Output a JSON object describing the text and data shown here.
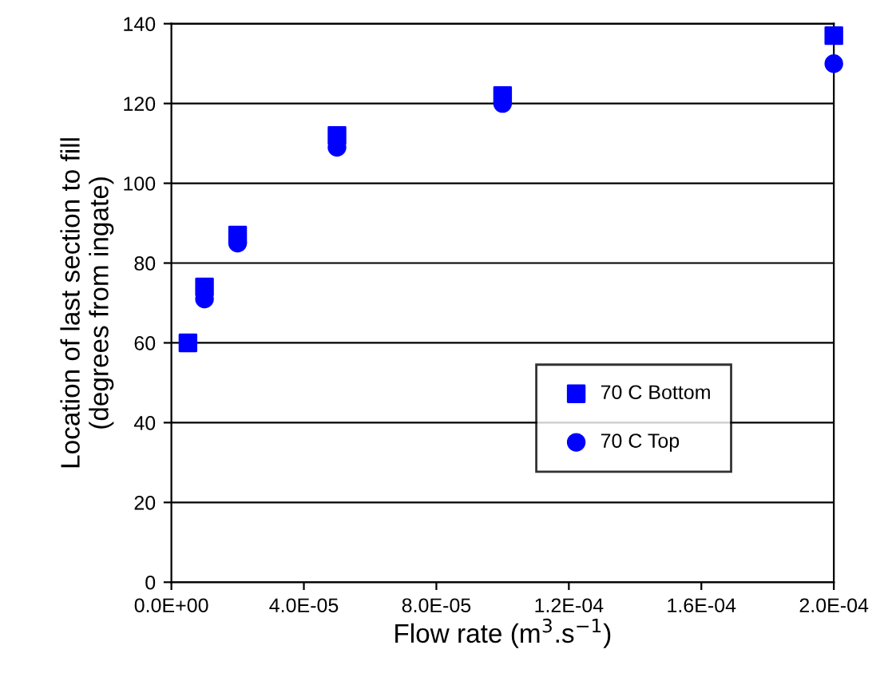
{
  "chart_data": {
    "type": "scatter",
    "xlabel": "Flow rate (m$^{3}$.s$^{−1}$)",
    "ylabel": "Location of last section to fill\n(degrees from ingate)",
    "x": [
      5e-06,
      1e-05,
      2e-05,
      5e-05,
      0.0001,
      0.0002
    ],
    "series": [
      {
        "name": "70 C Bottom",
        "color": "#0000ff",
        "marker": "square",
        "values": [
          60,
          74,
          87,
          112,
          122,
          137
        ]
      },
      {
        "name": "70 C Top",
        "color": "#0000ff",
        "marker": "circle",
        "values": [
          null,
          71,
          85,
          109,
          120,
          130
        ]
      }
    ],
    "xlim": [
      0,
      0.0002
    ],
    "xticks": [
      {
        "value": 0,
        "label": "0.0E+00"
      },
      {
        "value": 4e-05,
        "label": "4.0E-05"
      },
      {
        "value": 8e-05,
        "label": "8.0E-05"
      },
      {
        "value": 0.00012,
        "label": "1.2E-04"
      },
      {
        "value": 0.00016,
        "label": "1.6E-04"
      },
      {
        "value": 0.0002,
        "label": "2.0E-04"
      }
    ],
    "ylim": [
      0,
      140
    ],
    "yticks": [
      0,
      20,
      40,
      60,
      80,
      100,
      120,
      140
    ],
    "grid": "y",
    "legend": "lower right"
  }
}
